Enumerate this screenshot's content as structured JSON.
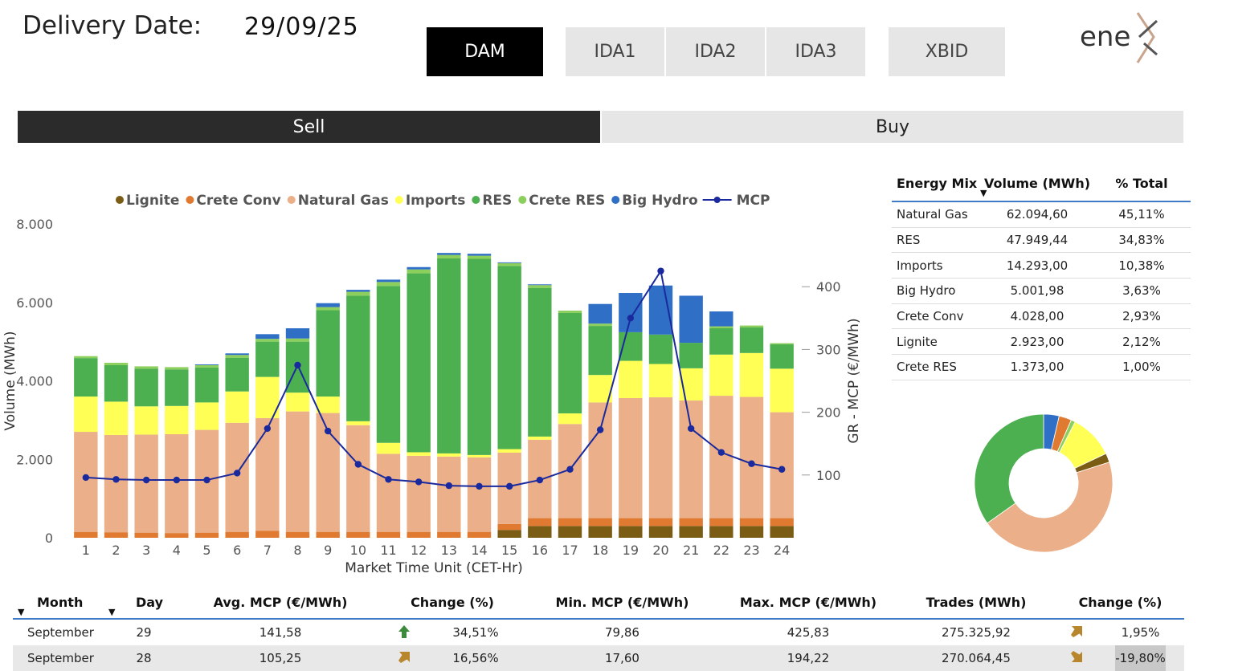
{
  "header": {
    "delivery_label": "Delivery Date:",
    "delivery_date": "29/09/25",
    "markets": [
      {
        "label": "DAM",
        "active": true
      },
      {
        "label": "IDA1",
        "active": false
      },
      {
        "label": "IDA2",
        "active": false
      },
      {
        "label": "IDA3",
        "active": false
      },
      {
        "label": "XBID",
        "active": false
      }
    ],
    "logo_text": "ene",
    "side_sell": "Sell",
    "side_buy": "Buy"
  },
  "chart_data": {
    "type": "bar",
    "stacked": true,
    "xlabel": "Market Time Unit (CET-Hr)",
    "ylabel": "Volume (MWh)",
    "y2label": "GR - MCP (€/MWh)",
    "ylim": [
      0,
      8000
    ],
    "y2lim": [
      0,
      500
    ],
    "yticks": [
      "0",
      "2.000",
      "4.000",
      "6.000",
      "8.000"
    ],
    "y2ticks": [
      "100",
      "200",
      "300",
      "400"
    ],
    "legend_position": "top",
    "categories": [
      "1",
      "2",
      "3",
      "4",
      "5",
      "6",
      "7",
      "8",
      "9",
      "10",
      "11",
      "12",
      "13",
      "14",
      "15",
      "16",
      "17",
      "18",
      "19",
      "20",
      "21",
      "22",
      "23",
      "24"
    ],
    "series": [
      {
        "name": "Lignite",
        "color": "#7a5c14",
        "values": [
          0,
          0,
          0,
          0,
          0,
          0,
          0,
          0,
          0,
          0,
          0,
          0,
          0,
          0,
          200,
          300,
          300,
          300,
          300,
          300,
          300,
          300,
          300,
          300
        ]
      },
      {
        "name": "Crete Conv",
        "color": "#e07a30",
        "values": [
          150,
          140,
          130,
          120,
          130,
          150,
          180,
          150,
          150,
          150,
          150,
          150,
          150,
          150,
          150,
          200,
          200,
          200,
          200,
          200,
          200,
          200,
          200,
          200
        ]
      },
      {
        "name": "Natural Gas",
        "color": "#ebb089",
        "values": [
          2550,
          2480,
          2500,
          2520,
          2620,
          2780,
          2870,
          3070,
          3030,
          2720,
          1990,
          1940,
          1920,
          1900,
          1820,
          2000,
          2400,
          2950,
          3060,
          3080,
          3000,
          3120,
          3090,
          2700
        ]
      },
      {
        "name": "Imports",
        "color": "#ffff55",
        "values": [
          900,
          850,
          720,
          720,
          700,
          800,
          1050,
          480,
          420,
          100,
          280,
          90,
          80,
          60,
          90,
          80,
          270,
          700,
          950,
          850,
          820,
          1050,
          1120,
          1110
        ]
      },
      {
        "name": "RES",
        "color": "#4caf50",
        "values": [
          980,
          930,
          960,
          930,
          890,
          860,
          900,
          1300,
          2200,
          3200,
          4000,
          4560,
          4970,
          5000,
          4670,
          3790,
          2560,
          1250,
          730,
          750,
          650,
          670,
          650,
          620
        ]
      },
      {
        "name": "Crete RES",
        "color": "#8ccf5c",
        "values": [
          50,
          60,
          60,
          60,
          60,
          70,
          70,
          80,
          80,
          100,
          100,
          100,
          90,
          80,
          70,
          70,
          60,
          60,
          0,
          0,
          0,
          50,
          50,
          30
        ]
      },
      {
        "name": "Big Hydro",
        "color": "#2f6fc6",
        "values": [
          0,
          0,
          0,
          0,
          20,
          40,
          120,
          260,
          100,
          50,
          60,
          60,
          50,
          50,
          20,
          20,
          0,
          500,
          1000,
          1250,
          1200,
          380,
          0,
          0
        ]
      }
    ],
    "line": {
      "name": "MCP",
      "color": "#1a2a9e",
      "values": [
        96,
        93,
        92,
        92,
        92,
        103,
        174,
        275,
        170,
        117,
        93,
        89,
        83,
        82,
        82,
        92,
        109,
        172,
        350,
        425,
        174,
        136,
        118,
        109
      ]
    }
  },
  "energy_mix": {
    "headers": [
      "Energy Mix",
      "Volume (MWh)",
      "% Total"
    ],
    "rows": [
      {
        "name": "Natural Gas",
        "volume": "62.094,60",
        "pct": "45,11%",
        "value": 45.11,
        "color": "#ebb089"
      },
      {
        "name": "RES",
        "volume": "47.949,44",
        "pct": "34,83%",
        "value": 34.83,
        "color": "#4caf50"
      },
      {
        "name": "Imports",
        "volume": "14.293,00",
        "pct": "10,38%",
        "value": 10.38,
        "color": "#ffff55"
      },
      {
        "name": "Big Hydro",
        "volume": "5.001,98",
        "pct": "3,63%",
        "value": 3.63,
        "color": "#2f6fc6"
      },
      {
        "name": "Crete Conv",
        "volume": "4.028,00",
        "pct": "2,93%",
        "value": 2.93,
        "color": "#e07a30"
      },
      {
        "name": "Lignite",
        "volume": "2.923,00",
        "pct": "2,12%",
        "value": 2.12,
        "color": "#7a5c14"
      },
      {
        "name": "Crete RES",
        "volume": "1.373,00",
        "pct": "1,00%",
        "value": 1.0,
        "color": "#8ccf5c"
      }
    ]
  },
  "summary": {
    "headers": [
      "Month",
      "Day",
      "Avg. MCP (€/MWh)",
      "Change (%)",
      "Min. MCP (€/MWh)",
      "Max. MCP (€/MWh)",
      "Trades (MWh)",
      "Change (%)"
    ],
    "rows": [
      {
        "month": "September",
        "day": "29",
        "avg": "141,58",
        "avg_icon": "arrow-up-icon",
        "avg_icon_color": "#3c8a3c",
        "avg_change": "34,51%",
        "min": "79,86",
        "max": "425,83",
        "trades": "275.325,92",
        "trades_icon": "arrow-up-right-icon",
        "trades_icon_color": "#b8862c",
        "trades_change": "1,95%"
      },
      {
        "month": "September",
        "day": "28",
        "avg": "105,25",
        "avg_icon": "arrow-up-right-icon",
        "avg_icon_color": "#b8862c",
        "avg_change": "16,56%",
        "min": "17,60",
        "max": "194,22",
        "trades": "270.064,45",
        "trades_icon": "arrow-down-right-icon",
        "trades_icon_color": "#b8862c",
        "trades_change": "-19,80%"
      }
    ]
  }
}
